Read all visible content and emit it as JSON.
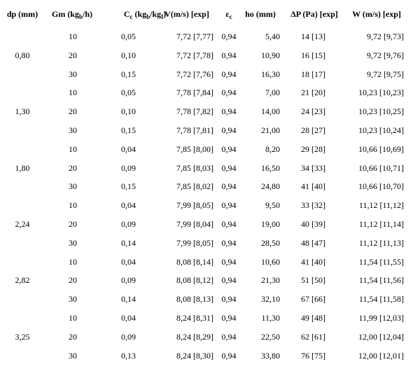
{
  "header": [
    [
      {
        "text": "dp (mm)"
      }
    ],
    [
      {
        "text": "Gm (kg"
      },
      {
        "sub": "b"
      },
      {
        "text": "/h)"
      }
    ],
    [
      {
        "text": "C"
      },
      {
        "sub": "c"
      },
      {
        "text": " (kg"
      },
      {
        "sub": "b"
      },
      {
        "text": "/kg"
      },
      {
        "sub": "f"
      },
      {
        "text": ")"
      }
    ],
    [
      {
        "text": "V(m/s) [exp]"
      }
    ],
    [
      {
        "text": "ε"
      },
      {
        "sub": "c"
      }
    ],
    [
      {
        "text": "ho (mm)"
      }
    ],
    [
      {
        "text": "ΔP (Pa) [exp]"
      }
    ],
    [
      {
        "text": "W (m/s) [exp]"
      }
    ]
  ],
  "groups": [
    {
      "dp": "0,80",
      "rows": [
        [
          "10",
          "0,05",
          "7,72 [7,77]",
          "0,94",
          "5,40",
          "14 [13]",
          "9,72 [9,73]"
        ],
        [
          "20",
          "0,10",
          "7,72 [7,78]",
          "0,94",
          "10,90",
          "16 [15]",
          "9,72 [9,76]"
        ],
        [
          "30",
          "0,15",
          "7,72 [7,76]",
          "0,94",
          "16,30",
          "18 [17]",
          "9,72 [9,75]"
        ]
      ]
    },
    {
      "dp": "1,30",
      "rows": [
        [
          "10",
          "0,05",
          "7,78 [7,84]",
          "0,94",
          "7,00",
          "21 [20]",
          "10,23 [10,23]"
        ],
        [
          "20",
          "0,10",
          "7,78 [7,82]",
          "0,94",
          "14,00",
          "24 [23]",
          "10,23 [10,25]"
        ],
        [
          "30",
          "0,15",
          "7,78 [7,81]",
          "0,94",
          "21,00",
          "28 [27]",
          "10,23 [10,24]"
        ]
      ]
    },
    {
      "dp": "1,80",
      "rows": [
        [
          "10",
          "0,04",
          "7,85 [8,00]",
          "0,94",
          "8,20",
          "29 [28]",
          "10,66 [10,69]"
        ],
        [
          "20",
          "0,09",
          "7,85 [8,03]",
          "0,94",
          "16,50",
          "34 [33]",
          "10,66 [10,71]"
        ],
        [
          "30",
          "0,15",
          "7,85 [8,02]",
          "0,94",
          "24,80",
          "41 [40]",
          "10,66 [10,70]"
        ]
      ]
    },
    {
      "dp": "2,24",
      "rows": [
        [
          "10",
          "0,04",
          "7,99 [8,05]",
          "0,94",
          "9,50",
          "33 [32]",
          "11,12 [11,12]"
        ],
        [
          "20",
          "0,09",
          "7,99 [8,04]",
          "0,94",
          "19,00",
          "40 [39]",
          "11,12 [11,14]"
        ],
        [
          "30",
          "0,14",
          "7,99 [8,05]",
          "0,94",
          "28,50",
          "48 [47]",
          "11,12 [11,13]"
        ]
      ]
    },
    {
      "dp": "2,82",
      "rows": [
        [
          "10",
          "0,04",
          "8,08 [8,14]",
          "0,94",
          "10,60",
          "41 [40]",
          "11,54 [11,55]"
        ],
        [
          "20",
          "0,09",
          "8,08 [8,12]",
          "0,94",
          "21,30",
          "51 [50]",
          "11,54 [11,56]"
        ],
        [
          "30",
          "0,14",
          "8,08 [8,13]",
          "0,94",
          "32,10",
          "67 [66]",
          "11,54 [11,58]"
        ]
      ]
    },
    {
      "dp": "3,25",
      "rows": [
        [
          "10",
          "0,04",
          "8,24 [8,31]",
          "0,94",
          "11,30",
          "49 [48]",
          "11,99 [12,03]"
        ],
        [
          "20",
          "0,09",
          "8,24 [8,29]",
          "0,94",
          "22,50",
          "62 [61]",
          "12,00 [12,04]"
        ],
        [
          "30",
          "0,13",
          "8,24 [8,30]",
          "0,94",
          "33,80",
          "76 [75]",
          "12,00 [12,01]"
        ]
      ]
    }
  ]
}
